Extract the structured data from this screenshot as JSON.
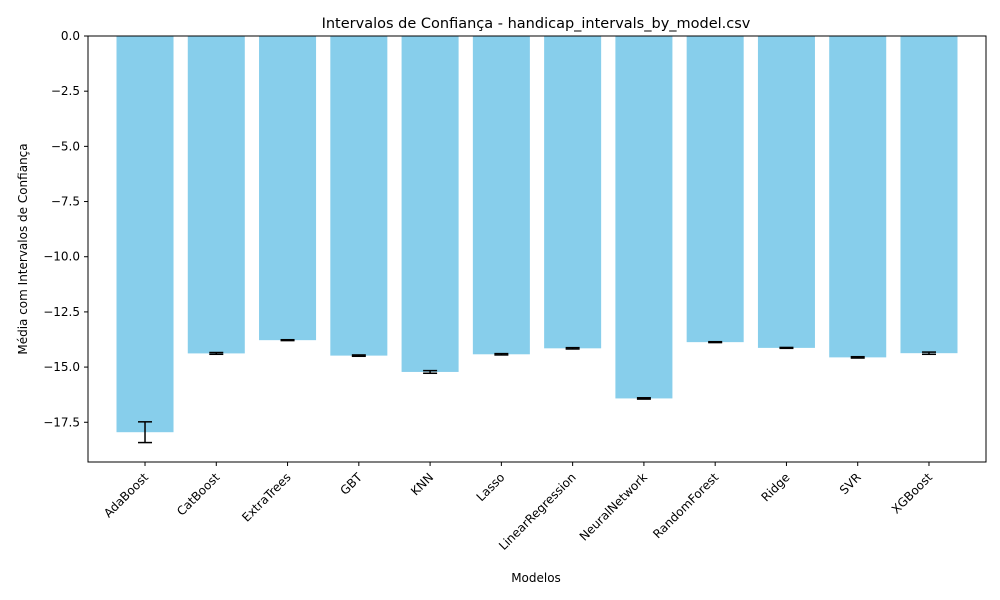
{
  "chart_data": {
    "type": "bar",
    "title": "Intervalos de Confiança - handicap_intervals_by_model.csv",
    "xlabel": "Modelos",
    "ylabel": "Média com Intervalos de Confiança",
    "categories": [
      "AdaBoost",
      "CatBoost",
      "ExtraTrees",
      "GBT",
      "KNN",
      "Lasso",
      "LinearRegression",
      "NeuralNetwork",
      "RandomForest",
      "Ridge",
      "SVR",
      "XGBoost"
    ],
    "values": [
      -17.95,
      -14.38,
      -13.78,
      -14.48,
      -15.22,
      -14.42,
      -14.15,
      -16.42,
      -13.87,
      -14.13,
      -14.56,
      -14.37
    ],
    "ci_lower": [
      -18.42,
      -14.42,
      -13.8,
      -14.51,
      -15.28,
      -14.45,
      -14.18,
      -16.45,
      -13.89,
      -14.15,
      -14.59,
      -14.42
    ],
    "ci_upper": [
      -17.48,
      -14.34,
      -13.76,
      -14.45,
      -15.16,
      -14.39,
      -14.12,
      -16.39,
      -13.85,
      -14.11,
      -14.53,
      -14.32
    ],
    "ylim": [
      -19.3,
      0
    ],
    "yticks": [
      0.0,
      -2.5,
      -5.0,
      -7.5,
      -10.0,
      -12.5,
      -15.0,
      -17.5
    ],
    "ytick_labels": [
      "0.0",
      "−2.5",
      "−5.0",
      "−7.5",
      "−10.0",
      "−12.5",
      "−15.0",
      "−17.5"
    ],
    "grid": false,
    "bar_color": "#87ceeb",
    "error_color": "#000000"
  }
}
